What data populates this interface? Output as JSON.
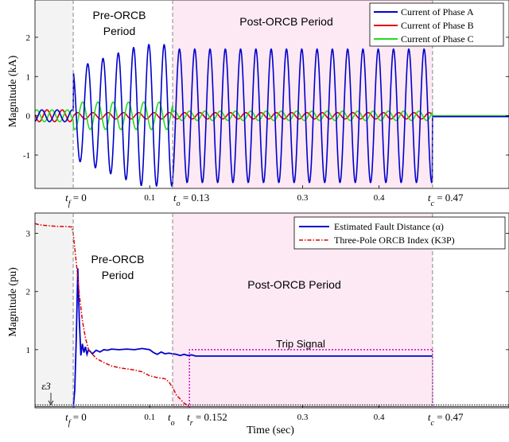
{
  "chart_data": [
    {
      "type": "line",
      "ylabel": "Magnitude (kA)",
      "xlim": [
        -0.05,
        0.57
      ],
      "ylim": [
        -1.85,
        2.95
      ],
      "yticks": [
        "-1",
        "0",
        "1",
        "2"
      ],
      "ytick_values": [
        -1,
        0,
        1,
        2
      ],
      "xticks": [
        "0.1",
        "0.3",
        "0.4"
      ],
      "xtick_values": [
        0.1,
        0.3,
        0.4
      ],
      "markers": [
        {
          "label": "t_f = 0",
          "x": 0
        },
        {
          "label": "t_o = 0.13",
          "x": 0.13
        },
        {
          "label": "t_c = 0.47",
          "x": 0.47
        }
      ],
      "regions": [
        {
          "name": "pre-fault",
          "x0": -0.05,
          "x1": 0,
          "color": "#f3f3f3"
        },
        {
          "name": "Post-ORCB Period",
          "x0": 0.13,
          "x1": 0.47,
          "color": "#fde9f3"
        }
      ],
      "region_labels": {
        "pre": [
          "Pre-ORCB",
          "Period"
        ],
        "post": [
          "Post-ORCB Period"
        ]
      },
      "series": [
        {
          "name": "Current of Phase A",
          "color": "#0000cc",
          "peak_pre_fault": 0.15,
          "peak_pre_orcb": 1.8,
          "peak_post_orcb": 1.7,
          "after_tc": -0.02
        },
        {
          "name": "Current of Phase B",
          "color": "#e00000",
          "peak_pre_fault": 0.15,
          "peak_fault": 0.08,
          "after_tc": 0
        },
        {
          "name": "Current of Phase C",
          "color": "#22dd22",
          "peak_pre_fault": 0.15,
          "peak_fault": 0.35,
          "peak_post_orcb": 0.12,
          "after_tc": 0
        }
      ],
      "frequency_hz": 50,
      "legend": "top-right"
    },
    {
      "type": "line",
      "xlabel": "Time (sec)",
      "ylabel": "Magnitude (pu)",
      "xlim": [
        -0.05,
        0.57
      ],
      "ylim": [
        0,
        3.35
      ],
      "yticks": [
        "1",
        "2",
        "3"
      ],
      "ytick_values": [
        1,
        2,
        3
      ],
      "xticks": [
        "0.1",
        "0.3",
        "0.4"
      ],
      "xtick_values": [
        0.1,
        0.3,
        0.4
      ],
      "markers": [
        {
          "label": "t_f = 0",
          "x": 0
        },
        {
          "label": "t_o",
          "x": 0.13
        },
        {
          "label": "t_r = 0.152",
          "x": 0.152
        },
        {
          "label": "t_c = 0.47",
          "x": 0.47
        }
      ],
      "regions": [
        {
          "name": "pre-fault",
          "x0": -0.05,
          "x1": 0,
          "color": "#f3f3f3"
        },
        {
          "name": "Post-ORCB Period",
          "x0": 0.13,
          "x1": 0.47,
          "color": "#fde9f3"
        }
      ],
      "region_labels": {
        "pre": [
          "Pre-ORCB",
          "Period"
        ],
        "post": [
          "Post-ORCB Period"
        ]
      },
      "threshold_label": "ε3",
      "threshold_value": 0.05,
      "trip_signal": {
        "label": "Trip Signal",
        "x0": 0.152,
        "x1": 0.47,
        "level": 1.0
      },
      "series": [
        {
          "name": "Estimated Fault Distance (α)",
          "color": "#0000cc",
          "x": [
            0.0,
            0.002,
            0.004,
            0.006,
            0.008,
            0.01,
            0.012,
            0.014,
            0.016,
            0.018,
            0.02,
            0.025,
            0.03,
            0.035,
            0.04,
            0.045,
            0.05,
            0.06,
            0.07,
            0.08,
            0.09,
            0.1,
            0.105,
            0.11,
            0.115,
            0.12,
            0.125,
            0.13,
            0.135,
            0.14,
            0.145,
            0.15,
            0.155,
            0.16,
            0.2,
            0.3,
            0.4,
            0.47
          ],
          "y": [
            0.0,
            0.3,
            1.2,
            2.4,
            1.5,
            0.9,
            1.1,
            0.95,
            1.05,
            0.92,
            1.0,
            0.93,
            0.99,
            0.96,
            1.0,
            0.99,
            1.01,
            1.0,
            1.01,
            1.0,
            1.02,
            1.0,
            0.95,
            0.92,
            0.96,
            0.93,
            0.94,
            0.93,
            0.92,
            0.9,
            0.92,
            0.9,
            0.91,
            0.89,
            0.89,
            0.89,
            0.89,
            0.89
          ]
        },
        {
          "name": "Three-Pole ORCB Index (K3P)",
          "color": "#e00000",
          "x": [
            -0.05,
            -0.045,
            -0.04,
            -0.03,
            -0.02,
            -0.01,
            -0.002,
            0.0,
            0.004,
            0.008,
            0.012,
            0.016,
            0.02,
            0.03,
            0.04,
            0.05,
            0.06,
            0.07,
            0.08,
            0.09,
            0.1,
            0.11,
            0.12,
            0.125,
            0.13,
            0.135,
            0.14,
            0.145,
            0.15,
            0.152
          ],
          "y": [
            3.17,
            3.15,
            3.14,
            3.13,
            3.12,
            3.12,
            3.11,
            3.0,
            2.5,
            1.95,
            1.5,
            1.2,
            1.0,
            0.85,
            0.78,
            0.72,
            0.69,
            0.67,
            0.65,
            0.62,
            0.55,
            0.52,
            0.5,
            0.45,
            0.35,
            0.22,
            0.15,
            0.08,
            0.04,
            0.02
          ]
        }
      ],
      "legend": "top-right"
    }
  ]
}
